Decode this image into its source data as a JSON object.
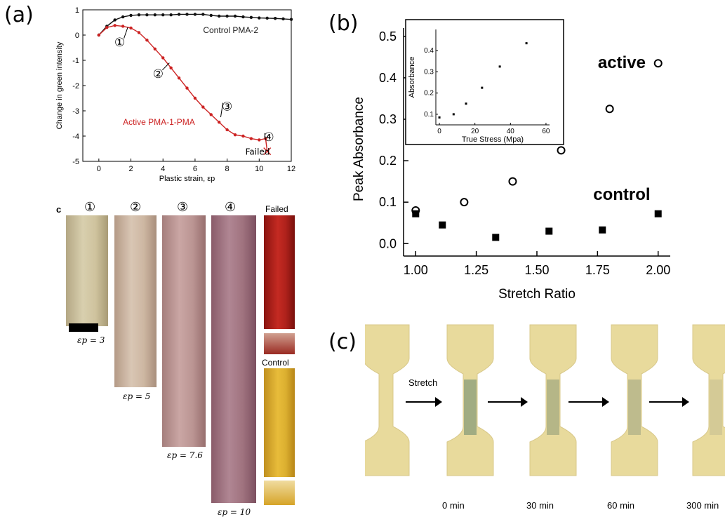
{
  "panels": {
    "a": "(a)",
    "b": "(b)",
    "c": "(c)"
  },
  "chart_data": [
    {
      "type": "line",
      "xlabel": "Plastic strain, εp",
      "ylabel": "Change in green intensity",
      "xlim": [
        -1,
        12
      ],
      "ylim": [
        -5,
        1
      ],
      "xticks": [
        "0",
        "2",
        "4",
        "6",
        "8",
        "10",
        "12"
      ],
      "yticks": [
        "1",
        "0",
        "-1",
        "-2",
        "-3",
        "-4",
        "-5"
      ],
      "grid": false,
      "series": [
        {
          "name": "Control PMA-2",
          "color": "#111111",
          "x": [
            0,
            0.5,
            1,
            1.5,
            2,
            2.5,
            3,
            3.5,
            4,
            4.5,
            5,
            5.5,
            6,
            6.5,
            7,
            7.5,
            8,
            8.5,
            9,
            9.5,
            10,
            10.5,
            11,
            11.5,
            12
          ],
          "y": [
            0,
            0.35,
            0.6,
            0.72,
            0.78,
            0.8,
            0.8,
            0.8,
            0.8,
            0.8,
            0.82,
            0.82,
            0.82,
            0.82,
            0.78,
            0.75,
            0.75,
            0.75,
            0.72,
            0.7,
            0.68,
            0.67,
            0.66,
            0.64,
            0.62
          ]
        },
        {
          "name": "Active PMA-1-PMA",
          "color": "#cc2222",
          "x": [
            0,
            0.5,
            1,
            1.5,
            2,
            2.5,
            3,
            3.5,
            4,
            4.5,
            5,
            5.5,
            6,
            6.5,
            7,
            7.5,
            8,
            8.5,
            9,
            9.5,
            10,
            10.4
          ],
          "y": [
            0,
            0.3,
            0.38,
            0.35,
            0.28,
            0.1,
            -0.2,
            -0.55,
            -0.9,
            -1.3,
            -1.7,
            -2.1,
            -2.5,
            -2.85,
            -3.15,
            -3.45,
            -3.75,
            -3.95,
            -4.0,
            -4.1,
            -4.15,
            -4.1
          ]
        }
      ],
      "annotations": [
        {
          "text": "①",
          "x": 1.3,
          "y": -0.3
        },
        {
          "text": "②",
          "x": 3.7,
          "y": -1.55
        },
        {
          "text": "③",
          "x": 8.0,
          "y": -2.85
        },
        {
          "text": "④",
          "x": 10.6,
          "y": -4.05
        },
        {
          "text": "Failed",
          "x": 9.9,
          "y": -4.6
        }
      ]
    },
    {
      "type": "scatter",
      "xlabel": "Stretch Ratio",
      "ylabel": "Peak Absorbance",
      "xlim": [
        0.95,
        2.05
      ],
      "ylim": [
        -0.03,
        0.52
      ],
      "xticks": [
        "1.00",
        "1.25",
        "1.50",
        "1.75",
        "2.00"
      ],
      "yticks": [
        "0.0",
        "0.1",
        "0.2",
        "0.3",
        "0.4",
        "0.5"
      ],
      "grid": false,
      "series": [
        {
          "name": "active",
          "marker": "open-circle",
          "x": [
            1.0,
            1.2,
            1.4,
            1.6,
            1.8,
            2.0
          ],
          "y": [
            0.08,
            0.1,
            0.15,
            0.225,
            0.325,
            0.435
          ]
        },
        {
          "name": "control",
          "marker": "filled-square",
          "x": [
            1.0,
            1.11,
            1.33,
            1.55,
            1.77,
            2.0
          ],
          "y": [
            0.072,
            0.045,
            0.015,
            0.03,
            0.033,
            0.072
          ]
        }
      ]
    },
    {
      "type": "scatter",
      "xlabel": "True Stress (Mpa)",
      "ylabel": "Absorbance",
      "xlim": [
        -2,
        62
      ],
      "ylim": [
        0.05,
        0.5
      ],
      "xticks": [
        "0",
        "20",
        "40",
        "60"
      ],
      "yticks": [
        "0.1",
        "0.2",
        "0.3",
        "0.4"
      ],
      "grid": false,
      "series": [
        {
          "name": "",
          "marker": "dot",
          "x": [
            0,
            8,
            15,
            24,
            34,
            49
          ],
          "y": [
            0.085,
            0.1,
            0.15,
            0.225,
            0.325,
            0.435
          ]
        }
      ]
    }
  ],
  "photo_panel_a": {
    "label_c": "c",
    "strips": [
      {
        "num": "①",
        "cap": "εp = 3"
      },
      {
        "num": "②",
        "cap": "εp = 5"
      },
      {
        "num": "③",
        "cap": "εp = 7.6"
      },
      {
        "num": "④",
        "cap": "εp = 10"
      }
    ],
    "failed": "Failed",
    "control": "Control"
  },
  "photo_panel_c": {
    "stretch": "Stretch",
    "times": [
      "0 min",
      "30 min",
      "60 min",
      "300 min"
    ]
  }
}
